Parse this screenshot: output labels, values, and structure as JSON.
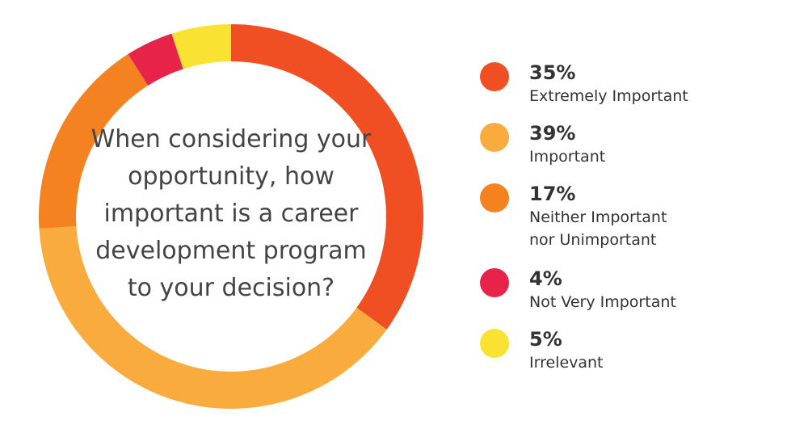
{
  "chart_data": {
    "type": "donut",
    "title": "When considering your opportunity, how important is a career development program to your decision?",
    "categories": [
      "Extremely Important",
      "Important",
      "Neither Important nor Unimportant",
      "Not Very Important",
      "Irrelevant"
    ],
    "values": [
      35,
      39,
      17,
      4,
      5
    ],
    "value_labels": [
      "35%",
      "39%",
      "17%",
      "4%",
      "5%"
    ],
    "colors": [
      "#f04e23",
      "#f9ac3d",
      "#f58220",
      "#e8234a",
      "#f9e231"
    ]
  }
}
